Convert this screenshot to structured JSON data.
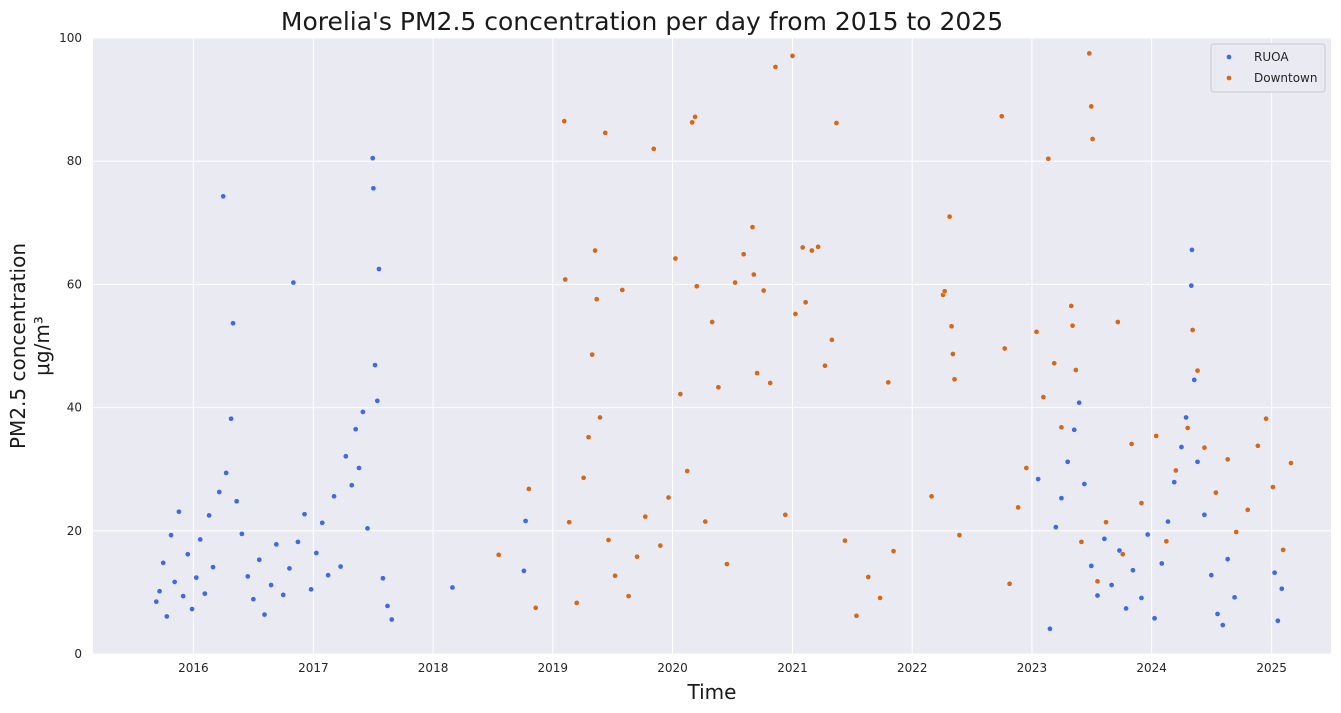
{
  "chart_data": {
    "type": "scatter",
    "title": "Morelia's PM2.5 concentration per day from 2015 to 2025",
    "xlabel": "Time",
    "ylabel_line1": "PM2.5 concentration",
    "ylabel_line2": "μg/m³",
    "xlim": [
      "2015-03-01",
      "2025-07-01"
    ],
    "ylim": [
      0,
      100
    ],
    "x_ticks": [
      "2016",
      "2017",
      "2018",
      "2019",
      "2020",
      "2021",
      "2022",
      "2023",
      "2024",
      "2025"
    ],
    "y_ticks": [
      0,
      20,
      40,
      60,
      80,
      100
    ],
    "grid": true,
    "legend_position": "top-right",
    "series": [
      {
        "name": "RUOA",
        "color": "#4169e1",
        "points": [
          [
            "2015-09-10",
            8.5
          ],
          [
            "2015-09-20",
            10.2
          ],
          [
            "2015-10-01",
            14.8
          ],
          [
            "2015-10-12",
            6.1
          ],
          [
            "2015-10-25",
            19.3
          ],
          [
            "2015-11-05",
            11.7
          ],
          [
            "2015-11-18",
            23.1
          ],
          [
            "2015-12-01",
            9.4
          ],
          [
            "2015-12-15",
            16.2
          ],
          [
            "2015-12-28",
            7.3
          ],
          [
            "2016-01-10",
            12.4
          ],
          [
            "2016-01-22",
            18.6
          ],
          [
            "2016-02-05",
            9.8
          ],
          [
            "2016-02-18",
            22.5
          ],
          [
            "2016-03-01",
            14.1
          ],
          [
            "2016-03-20",
            26.3
          ],
          [
            "2016-04-01",
            74.3
          ],
          [
            "2016-04-10",
            29.4
          ],
          [
            "2016-04-25",
            38.2
          ],
          [
            "2016-05-01",
            53.7
          ],
          [
            "2016-05-12",
            24.8
          ],
          [
            "2016-05-28",
            19.5
          ],
          [
            "2016-06-15",
            12.6
          ],
          [
            "2016-07-02",
            8.9
          ],
          [
            "2016-07-20",
            15.3
          ],
          [
            "2016-08-05",
            6.4
          ],
          [
            "2016-08-25",
            11.2
          ],
          [
            "2016-09-10",
            17.8
          ],
          [
            "2016-10-01",
            9.6
          ],
          [
            "2016-10-20",
            13.9
          ],
          [
            "2016-11-01",
            60.3
          ],
          [
            "2016-11-15",
            18.2
          ],
          [
            "2016-12-05",
            22.7
          ],
          [
            "2016-12-25",
            10.5
          ],
          [
            "2017-01-10",
            16.4
          ],
          [
            "2017-01-28",
            21.3
          ],
          [
            "2017-02-15",
            12.8
          ],
          [
            "2017-03-05",
            25.6
          ],
          [
            "2017-03-25",
            14.2
          ],
          [
            "2017-04-10",
            32.1
          ],
          [
            "2017-04-28",
            27.4
          ],
          [
            "2017-05-10",
            36.5
          ],
          [
            "2017-05-20",
            30.2
          ],
          [
            "2017-06-01",
            39.3
          ],
          [
            "2017-06-15",
            20.4
          ],
          [
            "2017-07-01",
            80.5
          ],
          [
            "2017-07-03",
            75.6
          ],
          [
            "2017-07-08",
            46.9
          ],
          [
            "2017-07-20",
            62.5
          ],
          [
            "2017-07-15",
            41.1
          ],
          [
            "2017-08-01",
            12.3
          ],
          [
            "2017-08-15",
            7.8
          ],
          [
            "2017-08-28",
            5.6
          ],
          [
            "2018-03-01",
            10.8
          ],
          [
            "2018-10-10",
            21.6
          ],
          [
            "2018-10-05",
            13.5
          ],
          [
            "2023-01-20",
            28.4
          ],
          [
            "2023-02-25",
            4.1
          ],
          [
            "2023-03-15",
            20.6
          ],
          [
            "2023-04-01",
            25.3
          ],
          [
            "2023-04-20",
            31.2
          ],
          [
            "2023-05-10",
            36.4
          ],
          [
            "2023-05-25",
            40.8
          ],
          [
            "2023-06-10",
            27.6
          ],
          [
            "2023-07-01",
            14.3
          ],
          [
            "2023-07-20",
            9.5
          ],
          [
            "2023-08-10",
            18.7
          ],
          [
            "2023-09-01",
            11.2
          ],
          [
            "2023-09-25",
            16.8
          ],
          [
            "2023-10-15",
            7.4
          ],
          [
            "2023-11-05",
            13.6
          ],
          [
            "2023-12-01",
            9.1
          ],
          [
            "2023-12-20",
            19.4
          ],
          [
            "2024-01-10",
            5.8
          ],
          [
            "2024-02-01",
            14.7
          ],
          [
            "2024-02-20",
            21.5
          ],
          [
            "2024-03-10",
            27.9
          ],
          [
            "2024-04-01",
            33.6
          ],
          [
            "2024-04-15",
            38.4
          ],
          [
            "2024-05-01",
            59.8
          ],
          [
            "2024-05-03",
            65.6
          ],
          [
            "2024-05-10",
            44.5
          ],
          [
            "2024-05-20",
            31.2
          ],
          [
            "2024-06-10",
            22.6
          ],
          [
            "2024-07-01",
            12.8
          ],
          [
            "2024-07-20",
            6.5
          ],
          [
            "2024-08-05",
            4.7
          ],
          [
            "2024-08-20",
            15.4
          ],
          [
            "2024-09-10",
            9.2
          ],
          [
            "2025-01-10",
            13.2
          ],
          [
            "2025-01-20",
            5.4
          ],
          [
            "2025-02-01",
            10.6
          ]
        ]
      },
      {
        "name": "Downtown",
        "color": "#d2691e",
        "points": [
          [
            "2018-07-20",
            16.1
          ],
          [
            "2018-10-20",
            26.8
          ],
          [
            "2018-11-10",
            7.5
          ],
          [
            "2019-02-05",
            86.5
          ],
          [
            "2019-02-08",
            60.8
          ],
          [
            "2019-02-20",
            21.4
          ],
          [
            "2019-03-15",
            8.3
          ],
          [
            "2019-04-05",
            28.6
          ],
          [
            "2019-04-20",
            35.2
          ],
          [
            "2019-05-01",
            48.6
          ],
          [
            "2019-05-10",
            65.5
          ],
          [
            "2019-05-15",
            57.6
          ],
          [
            "2019-05-25",
            38.4
          ],
          [
            "2019-06-10",
            84.6
          ],
          [
            "2019-06-20",
            18.5
          ],
          [
            "2019-07-10",
            12.7
          ],
          [
            "2019-08-01",
            59.1
          ],
          [
            "2019-08-20",
            9.4
          ],
          [
            "2019-09-15",
            15.8
          ],
          [
            "2019-10-10",
            22.3
          ],
          [
            "2019-11-05",
            82.0
          ],
          [
            "2019-11-25",
            17.6
          ],
          [
            "2019-12-20",
            25.4
          ],
          [
            "2020-01-10",
            64.2
          ],
          [
            "2020-01-25",
            42.2
          ],
          [
            "2020-02-15",
            29.7
          ],
          [
            "2020-03-01",
            86.3
          ],
          [
            "2020-03-10",
            87.2
          ],
          [
            "2020-03-15",
            59.7
          ],
          [
            "2020-04-10",
            21.5
          ],
          [
            "2020-05-01",
            53.9
          ],
          [
            "2020-05-20",
            43.3
          ],
          [
            "2020-06-15",
            14.6
          ],
          [
            "2020-07-10",
            60.3
          ],
          [
            "2020-08-05",
            64.9
          ],
          [
            "2020-09-01",
            69.3
          ],
          [
            "2020-09-05",
            61.6
          ],
          [
            "2020-09-15",
            45.6
          ],
          [
            "2020-10-05",
            59.0
          ],
          [
            "2020-10-25",
            44.0
          ],
          [
            "2020-11-10",
            95.3
          ],
          [
            "2020-12-10",
            22.6
          ],
          [
            "2021-01-01",
            97.1
          ],
          [
            "2021-01-10",
            55.2
          ],
          [
            "2021-02-01",
            66.0
          ],
          [
            "2021-02-10",
            57.1
          ],
          [
            "2021-03-01",
            65.5
          ],
          [
            "2021-03-20",
            66.1
          ],
          [
            "2021-04-10",
            46.8
          ],
          [
            "2021-05-01",
            51.0
          ],
          [
            "2021-05-15",
            86.2
          ],
          [
            "2021-06-10",
            18.4
          ],
          [
            "2021-07-15",
            6.2
          ],
          [
            "2021-08-20",
            12.5
          ],
          [
            "2021-09-25",
            9.1
          ],
          [
            "2021-10-20",
            44.1
          ],
          [
            "2021-11-05",
            16.7
          ],
          [
            "2022-03-01",
            25.6
          ],
          [
            "2022-04-05",
            58.3
          ],
          [
            "2022-04-10",
            58.9
          ],
          [
            "2022-04-25",
            71.0
          ],
          [
            "2022-05-01",
            53.2
          ],
          [
            "2022-05-05",
            48.7
          ],
          [
            "2022-05-10",
            44.6
          ],
          [
            "2022-05-25",
            19.3
          ],
          [
            "2022-10-01",
            87.3
          ],
          [
            "2022-10-10",
            49.6
          ],
          [
            "2022-10-25",
            11.4
          ],
          [
            "2022-11-20",
            23.8
          ],
          [
            "2022-12-15",
            30.2
          ],
          [
            "2023-01-15",
            52.3
          ],
          [
            "2023-02-05",
            41.7
          ],
          [
            "2023-02-20",
            80.4
          ],
          [
            "2023-03-10",
            47.2
          ],
          [
            "2023-04-01",
            36.8
          ],
          [
            "2023-05-01",
            56.5
          ],
          [
            "2023-05-05",
            53.3
          ],
          [
            "2023-05-15",
            46.1
          ],
          [
            "2023-06-01",
            18.2
          ],
          [
            "2023-06-25",
            97.5
          ],
          [
            "2023-07-01",
            88.9
          ],
          [
            "2023-07-05",
            83.6
          ],
          [
            "2023-07-20",
            11.8
          ],
          [
            "2023-08-15",
            21.4
          ],
          [
            "2023-09-20",
            53.9
          ],
          [
            "2023-10-05",
            16.2
          ],
          [
            "2023-11-01",
            34.1
          ],
          [
            "2023-12-01",
            24.5
          ],
          [
            "2024-01-15",
            35.4
          ],
          [
            "2024-02-15",
            18.3
          ],
          [
            "2024-03-15",
            29.8
          ],
          [
            "2024-04-20",
            36.7
          ],
          [
            "2024-05-05",
            52.6
          ],
          [
            "2024-05-20",
            46.0
          ],
          [
            "2024-06-10",
            33.5
          ],
          [
            "2024-07-15",
            26.2
          ],
          [
            "2024-08-20",
            31.6
          ],
          [
            "2024-09-15",
            19.8
          ],
          [
            "2024-10-20",
            23.4
          ],
          [
            "2024-11-20",
            33.8
          ],
          [
            "2024-12-15",
            38.2
          ],
          [
            "2025-01-05",
            27.1
          ],
          [
            "2025-02-05",
            16.9
          ],
          [
            "2025-03-01",
            31.0
          ]
        ]
      }
    ]
  }
}
